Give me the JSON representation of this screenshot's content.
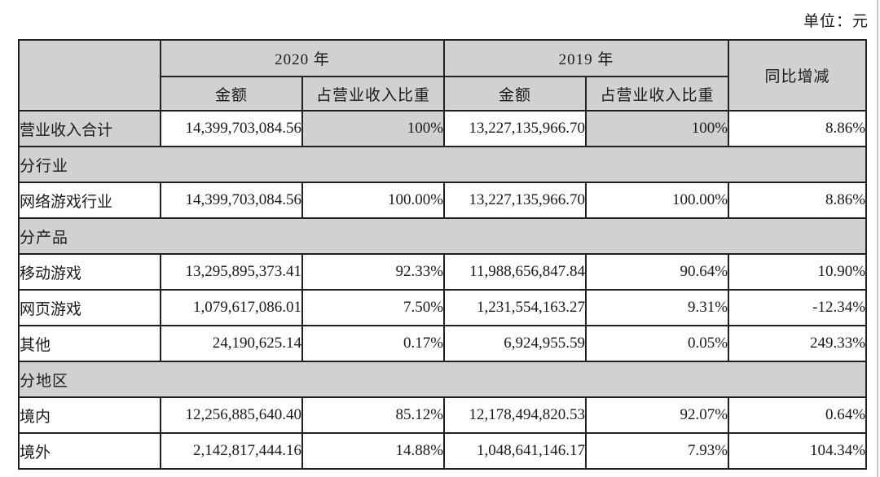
{
  "unit_label": "单位：元",
  "colors": {
    "shaded_bg": "#d1d1d1",
    "border": "#212121",
    "text": "#1a1a1a",
    "page_bg": "#ffffff"
  },
  "table": {
    "header": {
      "year_2020": "2020 年",
      "year_2019": "2019 年",
      "amount_2020": "金额",
      "proportion_2020": "占营业收入比重",
      "amount_2019": "金额",
      "proportion_2019": "占营业收入比重",
      "yoy": "同比增减"
    },
    "rows": [
      {
        "type": "data",
        "label": "营业收入合计",
        "cells": [
          "14,399,703,084.56",
          "100%",
          "13,227,135,966.70",
          "100%",
          "8.86%"
        ],
        "shaded": [
          true,
          false,
          true,
          false,
          true,
          false
        ]
      },
      {
        "type": "section",
        "label": "分行业"
      },
      {
        "type": "data",
        "label": "网络游戏行业",
        "cells": [
          "14,399,703,084.56",
          "100.00%",
          "13,227,135,966.70",
          "100.00%",
          "8.86%"
        ]
      },
      {
        "type": "section",
        "label": "分产品"
      },
      {
        "type": "data",
        "label": "移动游戏",
        "cells": [
          "13,295,895,373.41",
          "92.33%",
          "11,988,656,847.84",
          "90.64%",
          "10.90%"
        ]
      },
      {
        "type": "data",
        "label": "网页游戏",
        "cells": [
          "1,079,617,086.01",
          "7.50%",
          "1,231,554,163.27",
          "9.31%",
          "-12.34%"
        ]
      },
      {
        "type": "data",
        "label": "其他",
        "cells": [
          "24,190,625.14",
          "0.17%",
          "6,924,955.59",
          "0.05%",
          "249.33%"
        ]
      },
      {
        "type": "section",
        "label": "分地区"
      },
      {
        "type": "data",
        "label": "境内",
        "cells": [
          "12,256,885,640.40",
          "85.12%",
          "12,178,494,820.53",
          "92.07%",
          "0.64%"
        ]
      },
      {
        "type": "data",
        "label": "境外",
        "cells": [
          "2,142,817,444.16",
          "14.88%",
          "1,048,641,146.17",
          "7.93%",
          "104.34%"
        ]
      }
    ]
  }
}
